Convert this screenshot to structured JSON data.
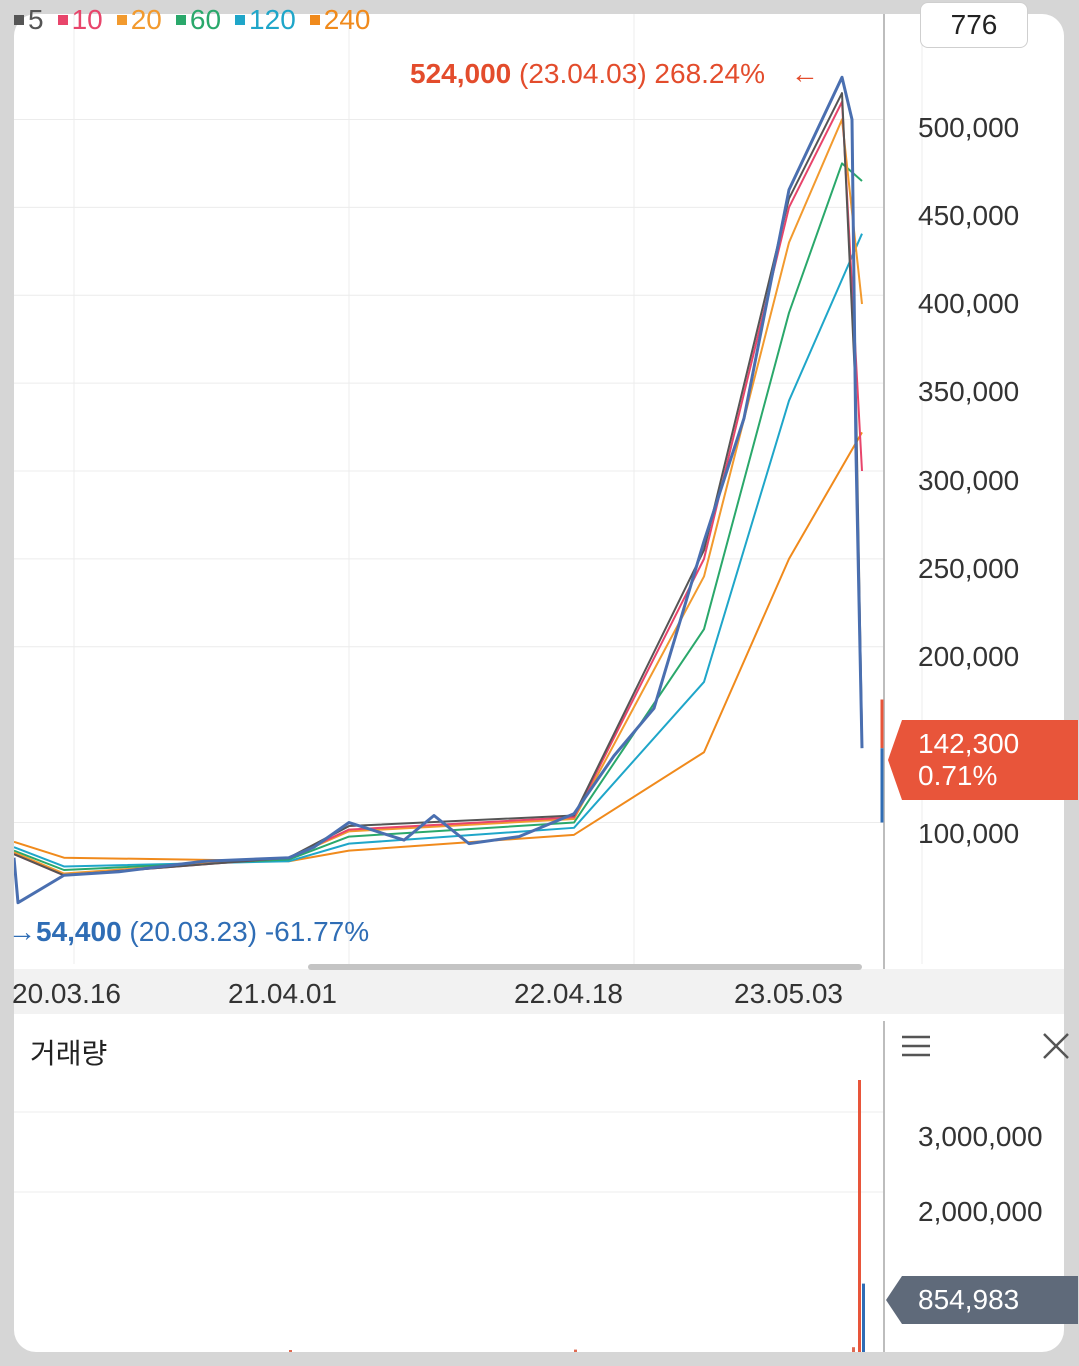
{
  "legend": [
    {
      "label": "5",
      "color": "#555555"
    },
    {
      "label": "10",
      "color": "#e8456b"
    },
    {
      "label": "20",
      "color": "#f29a2e"
    },
    {
      "label": "60",
      "color": "#2aa86b"
    },
    {
      "label": "120",
      "color": "#1fa6c9"
    },
    {
      "label": "240",
      "color": "#f08a1c"
    }
  ],
  "period_value": "776",
  "high_marker": {
    "price": "524,000",
    "date": "(23.04.03)",
    "change": "268.24%",
    "arrow": "←"
  },
  "low_marker": {
    "arrow": "→",
    "price": "54,400",
    "date": "(20.03.23)",
    "change": "-61.77%"
  },
  "current_price": {
    "price": "142,300",
    "change": "0.71%"
  },
  "volume_panel": {
    "title": "거래량",
    "current": "854,983",
    "menu_icon": "hamburger-menu-icon",
    "close_icon": "close-icon"
  },
  "colors": {
    "up": "#e8553a",
    "down": "#2f6db5",
    "price_line": "#4a6fb0"
  },
  "chart_data": [
    {
      "type": "line",
      "title": "",
      "yticks": [
        "500,000",
        "450,000",
        "400,000",
        "350,000",
        "300,000",
        "250,000",
        "200,000",
        "100,000"
      ],
      "xticks": [
        "20.03.16",
        "21.04.01",
        "22.04.18",
        "23.05.03"
      ],
      "ylim": [
        40000,
        560000
      ],
      "series": [
        {
          "name": "price",
          "points": [
            [
              "20.03.16",
              80000
            ],
            [
              "20.03.23",
              54400
            ],
            [
              "20.06",
              70000
            ],
            [
              "20.09",
              72000
            ],
            [
              "21.01",
              78000
            ],
            [
              "21.04.01",
              80000
            ],
            [
              "21.05",
              86000
            ],
            [
              "21.07",
              100000
            ],
            [
              "21.09",
              90000
            ],
            [
              "21.11",
              104000
            ],
            [
              "22.01",
              88000
            ],
            [
              "22.03",
              92000
            ],
            [
              "22.04.18",
              105000
            ],
            [
              "22.06",
              138000
            ],
            [
              "22.08",
              165000
            ],
            [
              "22.10",
              260000
            ],
            [
              "22.12",
              330000
            ],
            [
              "23.02",
              460000
            ],
            [
              "23.04.03",
              524000
            ],
            [
              "23.04.20",
              500000
            ],
            [
              "23.04.24",
              310000
            ],
            [
              "23.05.03",
              142300
            ]
          ]
        },
        {
          "name": "5",
          "points": [
            [
              "20.03.16",
              82000
            ],
            [
              "20.06",
              70000
            ],
            [
              "21.04.01",
              80000
            ],
            [
              "21.07",
              98000
            ],
            [
              "22.04.18",
              104000
            ],
            [
              "22.10",
              255000
            ],
            [
              "23.02",
              455000
            ],
            [
              "23.04.03",
              515000
            ],
            [
              "23.04.24",
              340000
            ],
            [
              "23.05.03",
              150000
            ]
          ]
        },
        {
          "name": "10",
          "points": [
            [
              "20.03.16",
              82000
            ],
            [
              "20.06",
              70000
            ],
            [
              "21.04.01",
              80000
            ],
            [
              "21.07",
              96000
            ],
            [
              "22.04.18",
              103000
            ],
            [
              "22.10",
              250000
            ],
            [
              "23.02",
              450000
            ],
            [
              "23.04.03",
              510000
            ],
            [
              "23.05.03",
              300000
            ]
          ]
        },
        {
          "name": "20",
          "points": [
            [
              "20.03.16",
              83000
            ],
            [
              "20.06",
              71000
            ],
            [
              "21.04.01",
              80000
            ],
            [
              "21.07",
              95000
            ],
            [
              "22.04.18",
              102000
            ],
            [
              "22.10",
              240000
            ],
            [
              "23.02",
              430000
            ],
            [
              "23.04.03",
              500000
            ],
            [
              "23.05.03",
              395000
            ]
          ]
        },
        {
          "name": "60",
          "points": [
            [
              "20.03.16",
              84000
            ],
            [
              "20.06",
              73000
            ],
            [
              "21.04.01",
              79000
            ],
            [
              "21.07",
              92000
            ],
            [
              "22.04.18",
              100000
            ],
            [
              "22.10",
              210000
            ],
            [
              "23.02",
              390000
            ],
            [
              "23.04.03",
              475000
            ],
            [
              "23.05.03",
              465000
            ]
          ]
        },
        {
          "name": "120",
          "points": [
            [
              "20.03.16",
              86000
            ],
            [
              "20.06",
              75000
            ],
            [
              "21.04.01",
              78000
            ],
            [
              "21.07",
              88000
            ],
            [
              "22.04.18",
              97000
            ],
            [
              "22.10",
              180000
            ],
            [
              "23.02",
              340000
            ],
            [
              "23.05.03",
              435000
            ]
          ]
        },
        {
          "name": "240",
          "points": [
            [
              "20.03.16",
              89000
            ],
            [
              "20.06",
              80000
            ],
            [
              "21.04.01",
              78000
            ],
            [
              "21.07",
              84000
            ],
            [
              "22.04.18",
              93000
            ],
            [
              "22.10",
              140000
            ],
            [
              "23.02",
              250000
            ],
            [
              "23.05.03",
              322000
            ]
          ]
        }
      ]
    },
    {
      "type": "bar",
      "title": "거래량",
      "yticks": [
        "3,000,000",
        "2,000,000"
      ],
      "ylim": [
        0,
        3600000
      ],
      "categories": [
        "20.03.16",
        "21.04.01",
        "22.04.18",
        "23.04.20",
        "23.04.24",
        "23.05.03"
      ],
      "values": [
        20000,
        25000,
        30000,
        60000,
        3400000,
        854983
      ]
    }
  ]
}
